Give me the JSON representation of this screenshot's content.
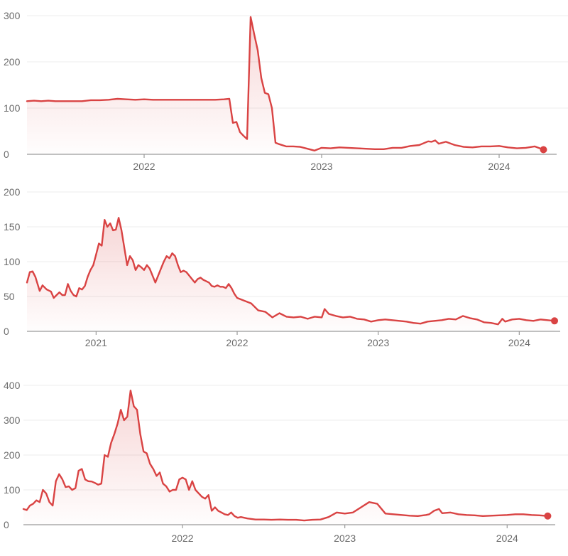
{
  "colors": {
    "series": "#d94343",
    "grid": "#ececec",
    "axis": "#9a9a9a",
    "text": "#6b6b6b"
  },
  "chart_data": [
    {
      "type": "area",
      "grid": true,
      "ylim": [
        0,
        300
      ],
      "yticks": [
        0,
        100,
        200,
        300
      ],
      "xlim": [
        2021.34,
        2024.3
      ],
      "xticks": [
        {
          "v": 2022,
          "label": "2022"
        },
        {
          "v": 2023,
          "label": "2023"
        },
        {
          "v": 2024,
          "label": "2024"
        }
      ],
      "series": [
        {
          "x": [
            2021.34,
            2021.38,
            2021.42,
            2021.46,
            2021.5,
            2021.55,
            2021.6,
            2021.65,
            2021.7,
            2021.75,
            2021.8,
            2021.85,
            2021.9,
            2021.95,
            2022.0,
            2022.05,
            2022.1,
            2022.15,
            2022.2,
            2022.25,
            2022.3,
            2022.35,
            2022.4,
            2022.45,
            2022.48,
            2022.5,
            2022.52,
            2022.54,
            2022.56,
            2022.58,
            2022.6,
            2022.62,
            2022.64,
            2022.66,
            2022.68,
            2022.7,
            2022.72,
            2022.74,
            2022.76,
            2022.8,
            2022.84,
            2022.88,
            2022.92,
            2022.96,
            2023.0,
            2023.05,
            2023.1,
            2023.15,
            2023.2,
            2023.25,
            2023.3,
            2023.35,
            2023.4,
            2023.45,
            2023.5,
            2023.55,
            2023.6,
            2023.62,
            2023.64,
            2023.66,
            2023.7,
            2023.75,
            2023.8,
            2023.85,
            2023.9,
            2023.95,
            2024.0,
            2024.05,
            2024.1,
            2024.15,
            2024.2,
            2024.25
          ],
          "y": [
            115,
            116,
            115,
            116,
            115,
            115,
            115,
            115,
            117,
            117,
            118,
            120,
            119,
            118,
            119,
            118,
            118,
            118,
            118,
            118,
            118,
            118,
            118,
            119,
            120,
            68,
            70,
            48,
            40,
            33,
            297,
            260,
            225,
            165,
            133,
            130,
            100,
            25,
            22,
            17,
            17,
            16,
            12,
            8,
            14,
            13,
            15,
            14,
            13,
            12,
            11,
            11,
            14,
            14,
            18,
            20,
            28,
            27,
            30,
            23,
            27,
            20,
            16,
            15,
            17,
            17,
            18,
            15,
            13,
            14,
            17,
            10
          ]
        }
      ]
    },
    {
      "type": "area",
      "grid": true,
      "ylim": [
        0,
        200
      ],
      "yticks": [
        0,
        50,
        100,
        150,
        200
      ],
      "xlim": [
        2020.51,
        2024.26
      ],
      "xticks": [
        {
          "v": 2021,
          "label": "2021"
        },
        {
          "v": 2022,
          "label": "2022"
        },
        {
          "v": 2023,
          "label": "2023"
        },
        {
          "v": 2024,
          "label": "2024"
        }
      ],
      "series": [
        {
          "x": [
            2020.51,
            2020.53,
            2020.55,
            2020.57,
            2020.6,
            2020.62,
            2020.65,
            2020.68,
            2020.7,
            2020.72,
            2020.74,
            2020.76,
            2020.78,
            2020.8,
            2020.82,
            2020.84,
            2020.86,
            2020.88,
            2020.9,
            2020.92,
            2020.94,
            2020.96,
            2020.98,
            2021.0,
            2021.02,
            2021.04,
            2021.06,
            2021.08,
            2021.1,
            2021.12,
            2021.14,
            2021.16,
            2021.18,
            2021.2,
            2021.22,
            2021.24,
            2021.26,
            2021.28,
            2021.3,
            2021.32,
            2021.34,
            2021.36,
            2021.38,
            2021.4,
            2021.42,
            2021.44,
            2021.46,
            2021.48,
            2021.5,
            2021.52,
            2021.54,
            2021.56,
            2021.58,
            2021.6,
            2021.62,
            2021.64,
            2021.66,
            2021.68,
            2021.7,
            2021.72,
            2021.74,
            2021.76,
            2021.78,
            2021.8,
            2021.82,
            2021.84,
            2021.86,
            2021.88,
            2021.9,
            2021.92,
            2021.94,
            2021.96,
            2021.98,
            2022.0,
            2022.05,
            2022.1,
            2022.15,
            2022.2,
            2022.25,
            2022.3,
            2022.35,
            2022.4,
            2022.45,
            2022.5,
            2022.55,
            2022.6,
            2022.62,
            2022.65,
            2022.7,
            2022.75,
            2022.8,
            2022.85,
            2022.9,
            2022.95,
            2023.0,
            2023.05,
            2023.1,
            2023.15,
            2023.2,
            2023.25,
            2023.3,
            2023.35,
            2023.4,
            2023.45,
            2023.5,
            2023.55,
            2023.6,
            2023.65,
            2023.7,
            2023.75,
            2023.8,
            2023.85,
            2023.88,
            2023.9,
            2023.95,
            2024.0,
            2024.05,
            2024.1,
            2024.15,
            2024.2,
            2024.25
          ],
          "y": [
            70,
            85,
            86,
            78,
            58,
            66,
            60,
            57,
            48,
            52,
            56,
            52,
            52,
            68,
            58,
            52,
            50,
            62,
            60,
            65,
            78,
            88,
            95,
            110,
            126,
            123,
            160,
            150,
            155,
            145,
            146,
            163,
            145,
            120,
            95,
            108,
            102,
            88,
            95,
            92,
            88,
            95,
            90,
            80,
            70,
            80,
            90,
            100,
            108,
            105,
            112,
            108,
            95,
            85,
            87,
            85,
            80,
            75,
            70,
            75,
            77,
            74,
            72,
            70,
            65,
            64,
            66,
            64,
            64,
            62,
            68,
            62,
            54,
            48,
            44,
            40,
            30,
            28,
            20,
            26,
            21,
            20,
            21,
            18,
            21,
            20,
            32,
            25,
            22,
            20,
            21,
            18,
            17,
            14,
            16,
            17,
            16,
            15,
            14,
            12,
            11,
            14,
            15,
            16,
            18,
            17,
            22,
            19,
            17,
            13,
            12,
            10,
            18,
            14,
            17,
            18,
            16,
            15,
            17,
            16,
            15
          ]
        }
      ]
    },
    {
      "type": "area",
      "grid": true,
      "ylim": [
        0,
        400
      ],
      "yticks": [
        0,
        100,
        200,
        300,
        400
      ],
      "xlim": [
        2021.02,
        2024.27
      ],
      "xticks": [
        {
          "v": 2022,
          "label": "2022"
        },
        {
          "v": 2023,
          "label": "2023"
        },
        {
          "v": 2024,
          "label": "2024"
        }
      ],
      "series": [
        {
          "x": [
            2021.02,
            2021.04,
            2021.06,
            2021.08,
            2021.1,
            2021.12,
            2021.14,
            2021.16,
            2021.18,
            2021.2,
            2021.22,
            2021.24,
            2021.26,
            2021.28,
            2021.3,
            2021.32,
            2021.34,
            2021.36,
            2021.38,
            2021.4,
            2021.42,
            2021.44,
            2021.46,
            2021.48,
            2021.5,
            2021.52,
            2021.54,
            2021.56,
            2021.58,
            2021.6,
            2021.62,
            2021.64,
            2021.66,
            2021.68,
            2021.7,
            2021.72,
            2021.74,
            2021.76,
            2021.78,
            2021.8,
            2021.82,
            2021.84,
            2021.86,
            2021.88,
            2021.9,
            2021.92,
            2021.94,
            2021.96,
            2021.98,
            2022.0,
            2022.02,
            2022.04,
            2022.06,
            2022.08,
            2022.1,
            2022.12,
            2022.14,
            2022.16,
            2022.18,
            2022.2,
            2022.22,
            2022.24,
            2022.26,
            2022.28,
            2022.3,
            2022.32,
            2022.34,
            2022.36,
            2022.38,
            2022.4,
            2022.45,
            2022.5,
            2022.55,
            2022.6,
            2022.65,
            2022.7,
            2022.75,
            2022.8,
            2022.85,
            2022.9,
            2022.95,
            2023.0,
            2023.05,
            2023.1,
            2023.15,
            2023.2,
            2023.25,
            2023.3,
            2023.35,
            2023.4,
            2023.45,
            2023.5,
            2023.52,
            2023.55,
            2023.58,
            2023.6,
            2023.65,
            2023.7,
            2023.75,
            2023.8,
            2023.85,
            2023.9,
            2023.95,
            2024.0,
            2024.05,
            2024.1,
            2024.15,
            2024.2,
            2024.25
          ],
          "y": [
            45,
            42,
            55,
            60,
            70,
            65,
            100,
            90,
            65,
            55,
            125,
            145,
            130,
            108,
            110,
            100,
            105,
            155,
            160,
            130,
            125,
            124,
            120,
            115,
            118,
            200,
            195,
            235,
            260,
            290,
            330,
            300,
            310,
            385,
            340,
            330,
            260,
            210,
            205,
            175,
            160,
            140,
            150,
            118,
            110,
            95,
            100,
            100,
            130,
            135,
            130,
            100,
            125,
            100,
            90,
            80,
            75,
            85,
            40,
            50,
            40,
            35,
            30,
            28,
            35,
            25,
            20,
            22,
            20,
            18,
            15,
            15,
            14,
            15,
            14,
            14,
            12,
            14,
            15,
            22,
            35,
            32,
            35,
            50,
            65,
            60,
            32,
            30,
            28,
            26,
            25,
            28,
            30,
            40,
            45,
            33,
            35,
            30,
            28,
            27,
            25,
            26,
            27,
            28,
            30,
            30,
            28,
            27,
            25
          ]
        }
      ]
    }
  ]
}
